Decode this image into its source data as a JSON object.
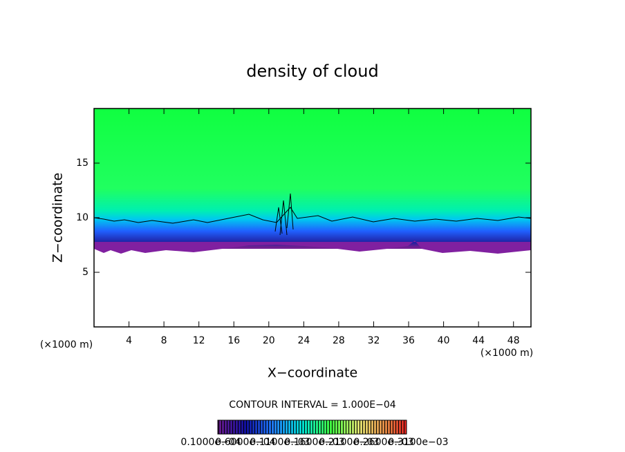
{
  "chart_data": {
    "type": "contour",
    "title": "density of cloud",
    "x_label": "X−coordinate",
    "y_label": "Z−coordinate",
    "x_unit_label": "(×1000 m)",
    "y_unit_label": "(×1000 m)",
    "xlim": [
      0,
      50
    ],
    "ylim": [
      0,
      20
    ],
    "xticks": [
      4,
      8,
      12,
      16,
      20,
      24,
      28,
      32,
      36,
      40,
      44,
      48
    ],
    "yticks": [
      5,
      10,
      15
    ],
    "contour_interval_label": "CONTOUR INTERVAL = 1.000E−04",
    "colorbar_labels": [
      "0.1000e−04",
      "0.6000e−04",
      "0.1100e−03",
      "0.1600e−03",
      "0.2100e−03",
      "0.2600e−03",
      "0.3100e−03"
    ]
  }
}
